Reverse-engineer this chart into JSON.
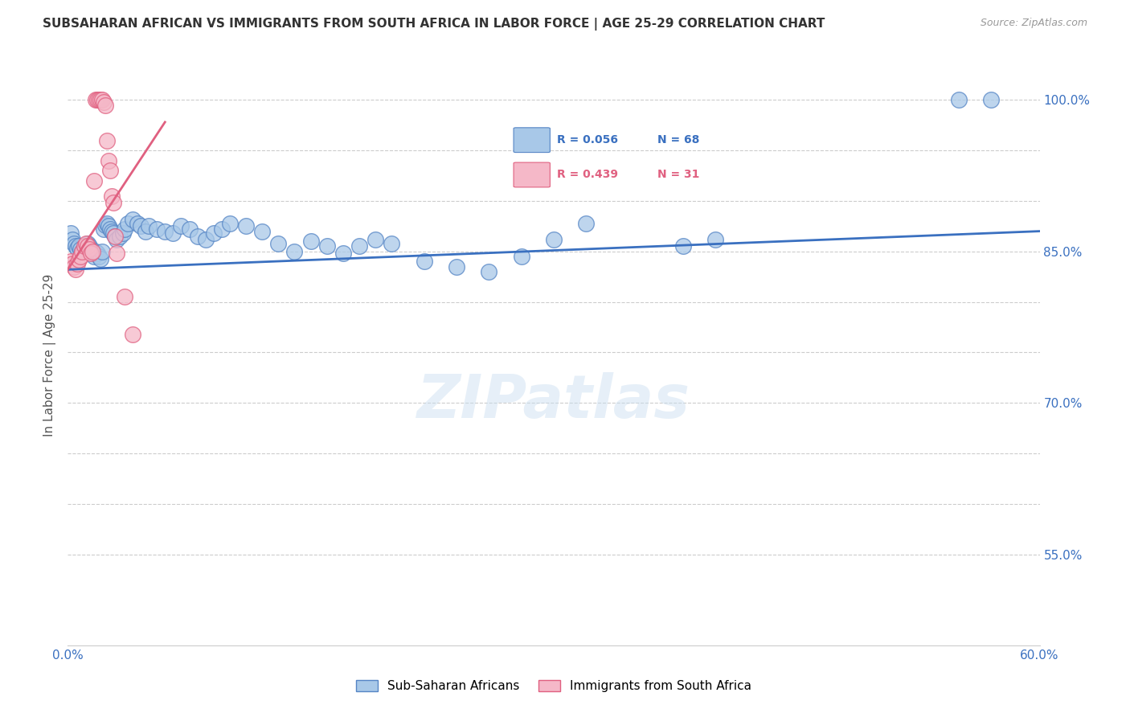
{
  "title": "SUBSAHARAN AFRICAN VS IMMIGRANTS FROM SOUTH AFRICA IN LABOR FORCE | AGE 25-29 CORRELATION CHART",
  "source": "Source: ZipAtlas.com",
  "ylabel": "In Labor Force | Age 25-29",
  "xlim": [
    0.0,
    0.6
  ],
  "ylim": [
    0.46,
    1.035
  ],
  "yticks": [
    0.55,
    0.6,
    0.65,
    0.7,
    0.75,
    0.8,
    0.85,
    0.9,
    0.95,
    1.0
  ],
  "ytick_labels": [
    "55.0%",
    "",
    "",
    "70.0%",
    "",
    "",
    "85.0%",
    "",
    "",
    "100.0%"
  ],
  "xticks": [
    0.0,
    0.1,
    0.2,
    0.3,
    0.4,
    0.5,
    0.6
  ],
  "xtick_labels": [
    "0.0%",
    "",
    "",
    "",
    "",
    "",
    "60.0%"
  ],
  "legend_blue_r": "R = 0.056",
  "legend_blue_n": "N = 68",
  "legend_pink_r": "R = 0.439",
  "legend_pink_n": "N = 31",
  "blue_color": "#a8c8e8",
  "pink_color": "#f5b8c8",
  "blue_edge_color": "#5585c5",
  "pink_edge_color": "#e06080",
  "blue_line_color": "#3a70c0",
  "pink_line_color": "#e06080",
  "watermark": "ZIPatlas",
  "blue_points": [
    [
      0.002,
      0.868
    ],
    [
      0.003,
      0.862
    ],
    [
      0.004,
      0.858
    ],
    [
      0.005,
      0.855
    ],
    [
      0.006,
      0.853
    ],
    [
      0.007,
      0.855
    ],
    [
      0.008,
      0.852
    ],
    [
      0.009,
      0.85
    ],
    [
      0.01,
      0.852
    ],
    [
      0.011,
      0.855
    ],
    [
      0.012,
      0.858
    ],
    [
      0.013,
      0.855
    ],
    [
      0.014,
      0.852
    ],
    [
      0.015,
      0.848
    ],
    [
      0.016,
      0.845
    ],
    [
      0.017,
      0.85
    ],
    [
      0.018,
      0.848
    ],
    [
      0.019,
      0.845
    ],
    [
      0.02,
      0.843
    ],
    [
      0.021,
      0.85
    ],
    [
      0.022,
      0.872
    ],
    [
      0.023,
      0.876
    ],
    [
      0.024,
      0.878
    ],
    [
      0.025,
      0.875
    ],
    [
      0.026,
      0.872
    ],
    [
      0.027,
      0.87
    ],
    [
      0.028,
      0.868
    ],
    [
      0.029,
      0.865
    ],
    [
      0.03,
      0.862
    ],
    [
      0.032,
      0.865
    ],
    [
      0.034,
      0.868
    ],
    [
      0.035,
      0.872
    ],
    [
      0.037,
      0.878
    ],
    [
      0.04,
      0.882
    ],
    [
      0.043,
      0.878
    ],
    [
      0.045,
      0.875
    ],
    [
      0.048,
      0.87
    ],
    [
      0.05,
      0.875
    ],
    [
      0.055,
      0.872
    ],
    [
      0.06,
      0.87
    ],
    [
      0.065,
      0.868
    ],
    [
      0.07,
      0.875
    ],
    [
      0.075,
      0.872
    ],
    [
      0.08,
      0.865
    ],
    [
      0.085,
      0.862
    ],
    [
      0.09,
      0.868
    ],
    [
      0.095,
      0.872
    ],
    [
      0.1,
      0.878
    ],
    [
      0.11,
      0.875
    ],
    [
      0.12,
      0.87
    ],
    [
      0.13,
      0.858
    ],
    [
      0.14,
      0.85
    ],
    [
      0.15,
      0.86
    ],
    [
      0.16,
      0.855
    ],
    [
      0.17,
      0.848
    ],
    [
      0.18,
      0.855
    ],
    [
      0.19,
      0.862
    ],
    [
      0.2,
      0.858
    ],
    [
      0.22,
      0.84
    ],
    [
      0.24,
      0.835
    ],
    [
      0.26,
      0.83
    ],
    [
      0.28,
      0.845
    ],
    [
      0.3,
      0.862
    ],
    [
      0.32,
      0.878
    ],
    [
      0.38,
      0.855
    ],
    [
      0.4,
      0.862
    ],
    [
      0.55,
      1.0
    ],
    [
      0.57,
      1.0
    ]
  ],
  "pink_points": [
    [
      0.002,
      0.84
    ],
    [
      0.003,
      0.838
    ],
    [
      0.004,
      0.835
    ],
    [
      0.005,
      0.832
    ],
    [
      0.006,
      0.838
    ],
    [
      0.007,
      0.842
    ],
    [
      0.008,
      0.845
    ],
    [
      0.009,
      0.85
    ],
    [
      0.01,
      0.855
    ],
    [
      0.011,
      0.858
    ],
    [
      0.012,
      0.855
    ],
    [
      0.013,
      0.852
    ],
    [
      0.014,
      0.848
    ],
    [
      0.015,
      0.85
    ],
    [
      0.016,
      0.92
    ],
    [
      0.017,
      1.0
    ],
    [
      0.018,
      1.0
    ],
    [
      0.019,
      1.0
    ],
    [
      0.02,
      1.0
    ],
    [
      0.021,
      1.0
    ],
    [
      0.022,
      0.998
    ],
    [
      0.023,
      0.995
    ],
    [
      0.024,
      0.96
    ],
    [
      0.025,
      0.94
    ],
    [
      0.026,
      0.93
    ],
    [
      0.027,
      0.905
    ],
    [
      0.028,
      0.898
    ],
    [
      0.029,
      0.865
    ],
    [
      0.03,
      0.848
    ],
    [
      0.035,
      0.805
    ],
    [
      0.04,
      0.768
    ]
  ],
  "blue_trend": [
    0.0,
    0.6,
    0.832,
    0.87
  ],
  "pink_trend": [
    0.0,
    0.06,
    0.832,
    0.978
  ]
}
